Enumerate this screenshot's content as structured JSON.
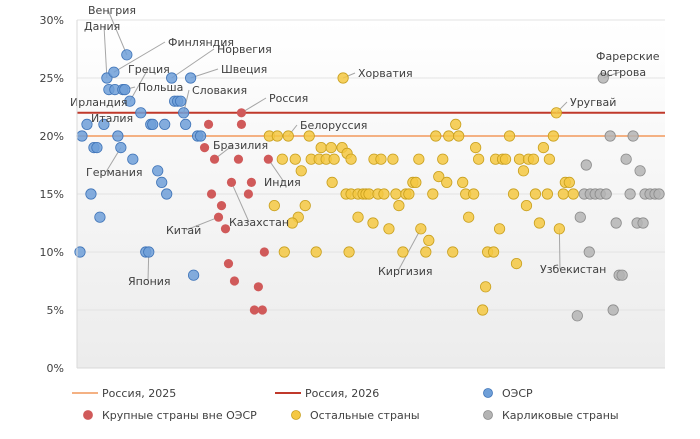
{
  "chart_data": {
    "type": "scatter",
    "title": "",
    "xlabel": "",
    "ylabel": "",
    "x_note_ordinal": true,
    "xlim": [
      75,
      665
    ],
    "ylim": [
      0,
      30
    ],
    "yticks": [
      0,
      5,
      10,
      15,
      20,
      25,
      30
    ],
    "ytick_labels": [
      "0%",
      "5%",
      "10%",
      "15%",
      "20%",
      "25%",
      "30%"
    ],
    "grid": true,
    "legend_placement": "bottom",
    "reference_lines": [
      {
        "name": "Россия, 2025",
        "value": 20,
        "color": "#f4b183"
      },
      {
        "name": "Россия, 2026",
        "value": 22,
        "color": "#c0392b"
      }
    ],
    "series": [
      {
        "name": "ОЭСР",
        "color": "#6f9fd8",
        "stroke": "#3f74b8",
        "points": [
          [
            78,
            10
          ],
          [
            80,
            20
          ],
          [
            85,
            21
          ],
          [
            89,
            15
          ],
          [
            92,
            19
          ],
          [
            95,
            19
          ],
          [
            98,
            13
          ],
          [
            102,
            21
          ],
          [
            105,
            25
          ],
          [
            107,
            24
          ],
          [
            112,
            25.5
          ],
          [
            113,
            24
          ],
          [
            116,
            20
          ],
          [
            119,
            19
          ],
          [
            121,
            24
          ],
          [
            123,
            24
          ],
          [
            125,
            27
          ],
          [
            128,
            23
          ],
          [
            131,
            18
          ],
          [
            139,
            22
          ],
          [
            144,
            10
          ],
          [
            147,
            10
          ],
          [
            149,
            21
          ],
          [
            151,
            21
          ],
          [
            156,
            17
          ],
          [
            160,
            16
          ],
          [
            163,
            21
          ],
          [
            165,
            15
          ],
          [
            170,
            25
          ],
          [
            173,
            23
          ],
          [
            176,
            23
          ],
          [
            179,
            23
          ],
          [
            182,
            22
          ],
          [
            184,
            21
          ],
          [
            189,
            25
          ],
          [
            192,
            8
          ],
          [
            196,
            20
          ],
          [
            199,
            20
          ]
        ]
      },
      {
        "name": "Крупные страны вне ОЭСР",
        "color": "#d05a5a",
        "stroke": "#d05a5a",
        "points": [
          [
            207,
            21
          ],
          [
            240,
            22
          ],
          [
            240,
            21
          ],
          [
            203,
            19
          ],
          [
            213,
            18
          ],
          [
            237,
            18
          ],
          [
            267,
            18
          ],
          [
            230,
            16
          ],
          [
            250,
            16
          ],
          [
            210,
            15
          ],
          [
            247,
            15
          ],
          [
            220,
            14
          ],
          [
            217,
            13
          ],
          [
            224,
            12
          ],
          [
            263,
            10
          ],
          [
            227,
            9
          ],
          [
            233,
            7.5
          ],
          [
            257,
            7
          ],
          [
            253,
            5
          ],
          [
            261,
            5
          ]
        ]
      },
      {
        "name": "Остальные страны",
        "color": "#f5c842",
        "stroke": "#c9a01e",
        "points": [
          [
            342,
            25
          ],
          [
            556,
            22
          ],
          [
            455,
            21
          ],
          [
            268,
            20
          ],
          [
            276,
            20
          ],
          [
            287,
            20
          ],
          [
            308,
            20
          ],
          [
            435,
            20
          ],
          [
            448,
            20
          ],
          [
            458,
            20
          ],
          [
            509,
            20
          ],
          [
            553,
            20
          ],
          [
            320,
            19
          ],
          [
            330,
            19
          ],
          [
            341,
            19
          ],
          [
            475,
            19
          ],
          [
            543,
            19
          ],
          [
            346,
            18.5
          ],
          [
            281,
            18
          ],
          [
            294,
            18
          ],
          [
            310,
            18
          ],
          [
            318,
            18
          ],
          [
            325,
            18
          ],
          [
            333,
            18
          ],
          [
            350,
            18
          ],
          [
            373,
            18
          ],
          [
            380,
            18
          ],
          [
            392,
            18
          ],
          [
            418,
            18
          ],
          [
            442,
            18
          ],
          [
            478,
            18
          ],
          [
            495,
            18
          ],
          [
            502,
            18
          ],
          [
            505,
            18
          ],
          [
            519,
            18
          ],
          [
            528,
            18
          ],
          [
            533,
            18
          ],
          [
            549,
            18
          ],
          [
            300,
            17
          ],
          [
            523,
            17
          ],
          [
            438,
            16.5
          ],
          [
            331,
            16
          ],
          [
            412,
            16
          ],
          [
            415,
            16
          ],
          [
            446,
            16
          ],
          [
            462,
            16
          ],
          [
            565,
            16
          ],
          [
            569,
            16
          ],
          [
            345,
            15
          ],
          [
            350,
            15
          ],
          [
            357,
            15
          ],
          [
            362,
            15
          ],
          [
            365,
            15
          ],
          [
            368,
            15
          ],
          [
            377,
            15
          ],
          [
            383,
            15
          ],
          [
            395,
            15
          ],
          [
            405,
            15
          ],
          [
            408,
            15
          ],
          [
            432,
            15
          ],
          [
            465,
            15
          ],
          [
            473,
            15
          ],
          [
            513,
            15
          ],
          [
            535,
            15
          ],
          [
            547,
            15
          ],
          [
            563,
            15
          ],
          [
            573,
            15
          ],
          [
            273,
            14
          ],
          [
            304,
            14
          ],
          [
            398,
            14
          ],
          [
            526,
            14
          ],
          [
            297,
            13
          ],
          [
            357,
            13
          ],
          [
            468,
            13
          ],
          [
            291,
            12.5
          ],
          [
            372,
            12.5
          ],
          [
            539,
            12.5
          ],
          [
            388,
            12
          ],
          [
            420,
            12
          ],
          [
            499,
            12
          ],
          [
            559,
            12
          ],
          [
            428,
            11
          ],
          [
            283,
            10
          ],
          [
            315,
            10
          ],
          [
            348,
            10
          ],
          [
            402,
            10
          ],
          [
            425,
            10
          ],
          [
            452,
            10
          ],
          [
            487,
            10
          ],
          [
            493,
            10
          ],
          [
            516,
            9
          ],
          [
            485,
            7
          ],
          [
            482,
            5
          ]
        ]
      },
      {
        "name": "Карликовые страны",
        "color": "#b4b4b4",
        "stroke": "#8c8c8c",
        "points": [
          [
            603,
            25
          ],
          [
            610,
            20
          ],
          [
            633,
            20
          ],
          [
            626,
            18
          ],
          [
            586,
            17.5
          ],
          [
            640,
            17
          ],
          [
            584,
            15
          ],
          [
            590,
            15
          ],
          [
            595,
            15
          ],
          [
            600,
            15
          ],
          [
            606,
            15
          ],
          [
            630,
            15
          ],
          [
            645,
            15
          ],
          [
            650,
            15
          ],
          [
            655,
            15
          ],
          [
            659,
            15
          ],
          [
            580,
            13
          ],
          [
            616,
            12.5
          ],
          [
            637,
            12.5
          ],
          [
            643,
            12.5
          ],
          [
            589,
            10
          ],
          [
            619,
            8
          ],
          [
            622,
            8
          ],
          [
            613,
            5
          ],
          [
            577,
            4.5
          ]
        ]
      }
    ],
    "annotations": [
      {
        "text": "Венгрия",
        "point": [
          125,
          27
        ]
      },
      {
        "text": "Дания",
        "point": [
          105,
          25
        ]
      },
      {
        "text": "Финляндия",
        "point": [
          112,
          25.5
        ]
      },
      {
        "text": "Норвегия",
        "point": [
          170,
          25
        ]
      },
      {
        "text": "Греция",
        "point": [
          128,
          23
        ]
      },
      {
        "text": "Швеция",
        "point": [
          189,
          25
        ]
      },
      {
        "text": "Польша",
        "point": [
          123,
          24
        ]
      },
      {
        "text": "Словакия",
        "point": [
          182,
          22
        ]
      },
      {
        "text": "Россия",
        "point": [
          240,
          22
        ]
      },
      {
        "text": "Ирландия",
        "point": null
      },
      {
        "text": "Италия",
        "point": null
      },
      {
        "text": "Белоруссия",
        "point": [
          287,
          20
        ]
      },
      {
        "text": "Бразилия",
        "point": [
          213,
          18
        ]
      },
      {
        "text": "Германия",
        "point": [
          119,
          19
        ]
      },
      {
        "text": "Индия",
        "point": [
          267,
          18
        ]
      },
      {
        "text": "Китай",
        "point": [
          217,
          13
        ]
      },
      {
        "text": "Казахстан",
        "point": [
          230,
          16
        ]
      },
      {
        "text": "Япония",
        "point": [
          147,
          10
        ]
      },
      {
        "text": "Хорватия",
        "point": [
          342,
          25
        ]
      },
      {
        "text": "Уругвай",
        "point": [
          556,
          22
        ]
      },
      {
        "text": "Фарерские",
        "point": null
      },
      {
        "text": "острова",
        "point": [
          603,
          25
        ]
      },
      {
        "text": "Киргизия",
        "point": [
          420,
          12
        ]
      },
      {
        "text": "Узбекистан",
        "point": [
          559,
          12
        ]
      }
    ]
  }
}
